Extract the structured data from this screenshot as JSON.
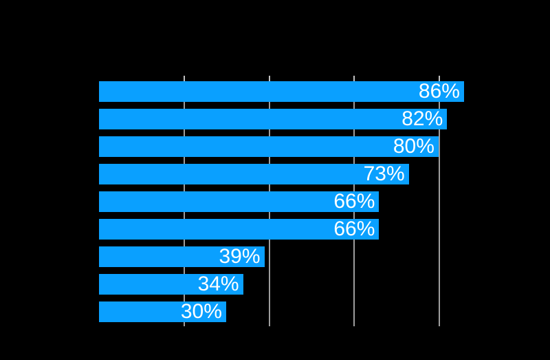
{
  "chart_data": {
    "type": "bar",
    "orientation": "horizontal",
    "values": [
      86,
      82,
      80,
      73,
      66,
      66,
      39,
      34,
      30
    ],
    "bar_labels": [
      "86%",
      "82%",
      "80%",
      "73%",
      "66%",
      "66%",
      "39%",
      "34%",
      "30%"
    ],
    "unit": "%",
    "x_gridlines": [
      20,
      40,
      60,
      80
    ],
    "xlim": [
      0,
      100
    ],
    "grid_on": true,
    "value_labels_position": "inside-end",
    "colors": {
      "background": "#000000",
      "bar": "#0aa0ff",
      "value_label": "#ffffff",
      "gridline": "#9e9e9e",
      "gridline_tick": "#c2c2c2"
    }
  }
}
